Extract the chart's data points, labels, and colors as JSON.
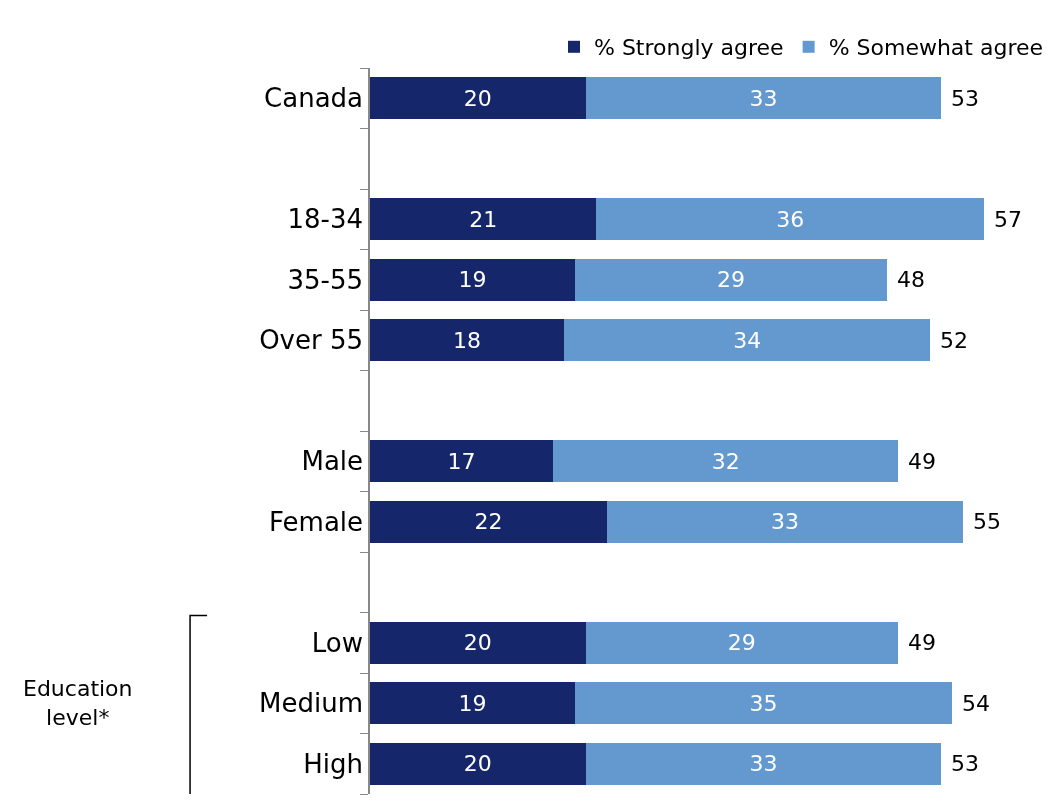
{
  "chart_data": {
    "type": "bar",
    "orientation": "horizontal",
    "stacked": true,
    "data_labels": true,
    "tick_labels": "y",
    "legend": "top right",
    "categories": [
      "Canada",
      null,
      "18-34",
      "35-55",
      "Over 55",
      null,
      "Male",
      "Female",
      null,
      "Low",
      "Medium",
      "High"
    ],
    "series": [
      {
        "name": "% Strongly agree",
        "color": "#16266b",
        "values": [
          20,
          null,
          21,
          19,
          18,
          null,
          17,
          22,
          null,
          20,
          19,
          20
        ]
      },
      {
        "name": "% Somewhat agree",
        "color": "#6399cf",
        "values": [
          33,
          null,
          36,
          29,
          34,
          null,
          32,
          33,
          null,
          29,
          35,
          33
        ]
      }
    ],
    "totals": [
      "53",
      null,
      "57",
      "48",
      "52",
      null,
      "49",
      "55",
      null,
      "49",
      "54",
      "53"
    ],
    "xlim": [
      0,
      63
    ],
    "annotations": [
      "Education level*"
    ]
  }
}
